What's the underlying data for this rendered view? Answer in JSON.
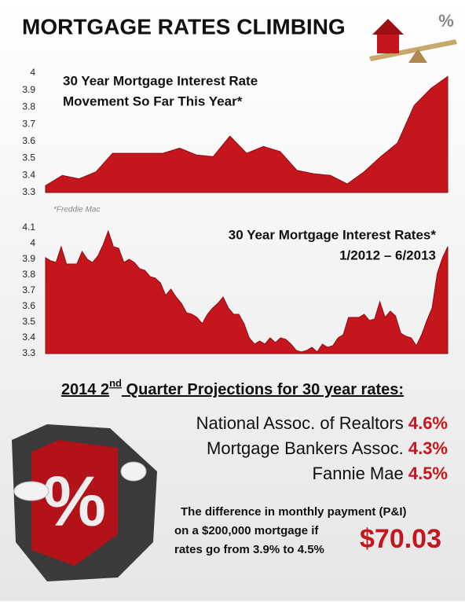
{
  "header": {
    "title": "MORTGAGE RATES CLIMBING"
  },
  "chart_data": [
    {
      "type": "area",
      "title": [
        "30 Year Mortgage Interest Rate",
        "Movement So Far This Year*"
      ],
      "color": "#c4161c",
      "values": [
        3.34,
        3.4,
        3.38,
        3.42,
        3.53,
        3.53,
        3.53,
        3.53,
        3.56,
        3.52,
        3.51,
        3.63,
        3.53,
        3.57,
        3.54,
        3.43,
        3.41,
        3.4,
        3.35,
        3.42,
        3.51,
        3.59,
        3.81,
        3.91,
        3.98
      ],
      "ylim": [
        3.3,
        4
      ],
      "yticks": [
        3.3,
        3.4,
        3.5,
        3.6,
        3.7,
        3.8,
        3.9,
        4
      ],
      "grid": false
    },
    {
      "type": "area",
      "title": [
        "30 Year Mortgage Interest Rates*",
        "1/2012 – 6/2013"
      ],
      "color": "#c4161c",
      "values": [
        3.91,
        3.89,
        3.88,
        3.98,
        3.87,
        3.87,
        3.87,
        3.95,
        3.9,
        3.88,
        3.92,
        3.99,
        4.08,
        3.98,
        3.97,
        3.88,
        3.9,
        3.88,
        3.84,
        3.83,
        3.79,
        3.78,
        3.75,
        3.67,
        3.71,
        3.66,
        3.62,
        3.56,
        3.55,
        3.53,
        3.49,
        3.55,
        3.59,
        3.62,
        3.66,
        3.59,
        3.55,
        3.55,
        3.49,
        3.4,
        3.36,
        3.38,
        3.36,
        3.4,
        3.37,
        3.4,
        3.39,
        3.36,
        3.32,
        3.31,
        3.32,
        3.34,
        3.31,
        3.36,
        3.34,
        3.35,
        3.4,
        3.42,
        3.53,
        3.53,
        3.53,
        3.55,
        3.51,
        3.52,
        3.63,
        3.53,
        3.57,
        3.54,
        3.43,
        3.41,
        3.4,
        3.35,
        3.42,
        3.51,
        3.59,
        3.81,
        3.91,
        3.98
      ],
      "ylim": [
        3.3,
        4.1
      ],
      "yticks": [
        3.3,
        3.4,
        3.5,
        3.6,
        3.7,
        3.8,
        3.9,
        4,
        4.1
      ],
      "grid": false
    }
  ],
  "source": "*Freddie Mac",
  "projections": {
    "heading": [
      "2014 2",
      "nd",
      " Quarter Projections for 30 year rates:"
    ],
    "rows": [
      [
        "National Assoc. of Realtors",
        "4.6%"
      ],
      [
        "Mortgage Bankers Assoc.",
        "4.3%"
      ],
      [
        "Fannie Mae",
        "4.5%"
      ]
    ]
  },
  "difference": {
    "lines": [
      "The difference in monthly payment (P&I)",
      "on a $200,000  mortgage if",
      "rates go from 3.9% to 4.5%"
    ],
    "amount": "$70.03"
  }
}
